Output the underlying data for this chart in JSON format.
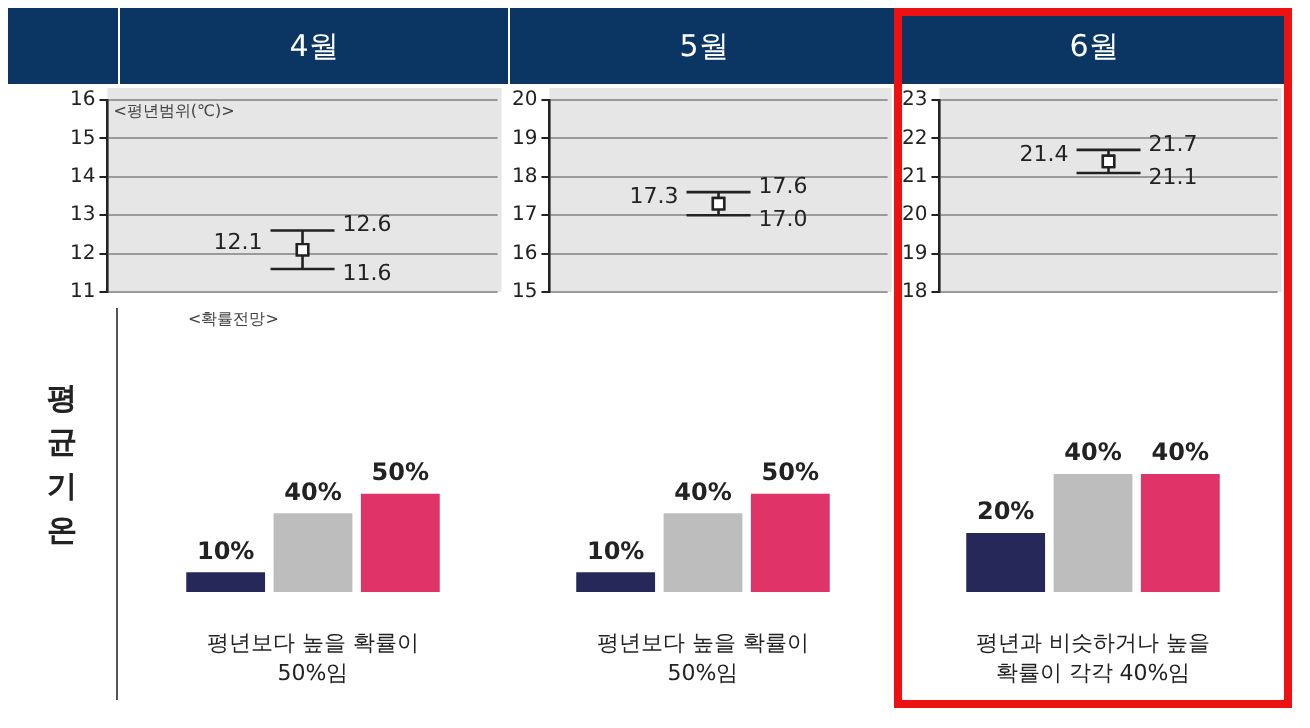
{
  "chart_data": [
    {
      "type": "scatter",
      "title": "4월",
      "categories": [
        null
      ],
      "values": [
        12.1
      ],
      "errors": [
        [
          11.6,
          12.6
        ]
      ],
      "color": "#222222",
      "marker": "square",
      "data_labels": true,
      "ylim": [
        11,
        16
      ],
      "yticks": [
        11,
        12,
        13,
        14,
        15,
        16
      ],
      "grid": "y",
      "tick_labels": "y",
      "ylabel": "<평년범위(℃)>",
      "annotations": [
        "12.6",
        "11.6"
      ]
    },
    {
      "type": "scatter",
      "title": "5월",
      "categories": [
        null
      ],
      "values": [
        17.3
      ],
      "errors": [
        [
          17.0,
          17.6
        ]
      ],
      "color": "#222222",
      "marker": "square",
      "data_labels": true,
      "ylim": [
        15,
        20
      ],
      "yticks": [
        15,
        16,
        17,
        18,
        19,
        20
      ],
      "grid": "y",
      "tick_labels": "y",
      "annotations": [
        "17.6",
        "17.0"
      ]
    },
    {
      "type": "scatter",
      "title": "6월",
      "categories": [
        null
      ],
      "values": [
        21.4
      ],
      "errors": [
        [
          21.1,
          21.7
        ]
      ],
      "color": "#222222",
      "marker": "square",
      "data_labels": true,
      "ylim": [
        18,
        23
      ],
      "yticks": [
        18,
        19,
        20,
        21,
        22,
        23
      ],
      "grid": "y",
      "tick_labels": "y",
      "annotations": [
        "21.7",
        "21.1"
      ]
    },
    {
      "type": "bar",
      "ylabel": "평균기온",
      "categories": [
        null,
        null,
        null
      ],
      "values": [
        10,
        40,
        50
      ],
      "colors": [
        "#26285a",
        "#bdbdbd",
        "#e03468"
      ],
      "value_labels": [
        "10%",
        "40%",
        "50%"
      ],
      "xlabel": "평년보다 높을 확률이 50%임",
      "tick_labels": false,
      "annotations": [
        "<확률전망>"
      ]
    },
    {
      "type": "bar",
      "categories": [
        null,
        null,
        null
      ],
      "values": [
        10,
        40,
        50
      ],
      "colors": [
        "#26285a",
        "#bdbdbd",
        "#e03468"
      ],
      "value_labels": [
        "10%",
        "40%",
        "50%"
      ],
      "xlabel": "평년보다 높을 확률이 50%임",
      "tick_labels": false
    },
    {
      "type": "bar",
      "categories": [
        null,
        null,
        null
      ],
      "values": [
        20,
        40,
        40
      ],
      "colors": [
        "#26285a",
        "#bdbdbd",
        "#e03468"
      ],
      "value_labels": [
        "20%",
        "40%",
        "40%"
      ],
      "xlabel": "평년과 비슷하거나 높을 확률이 각각 40%임",
      "tick_labels": false
    }
  ]
}
